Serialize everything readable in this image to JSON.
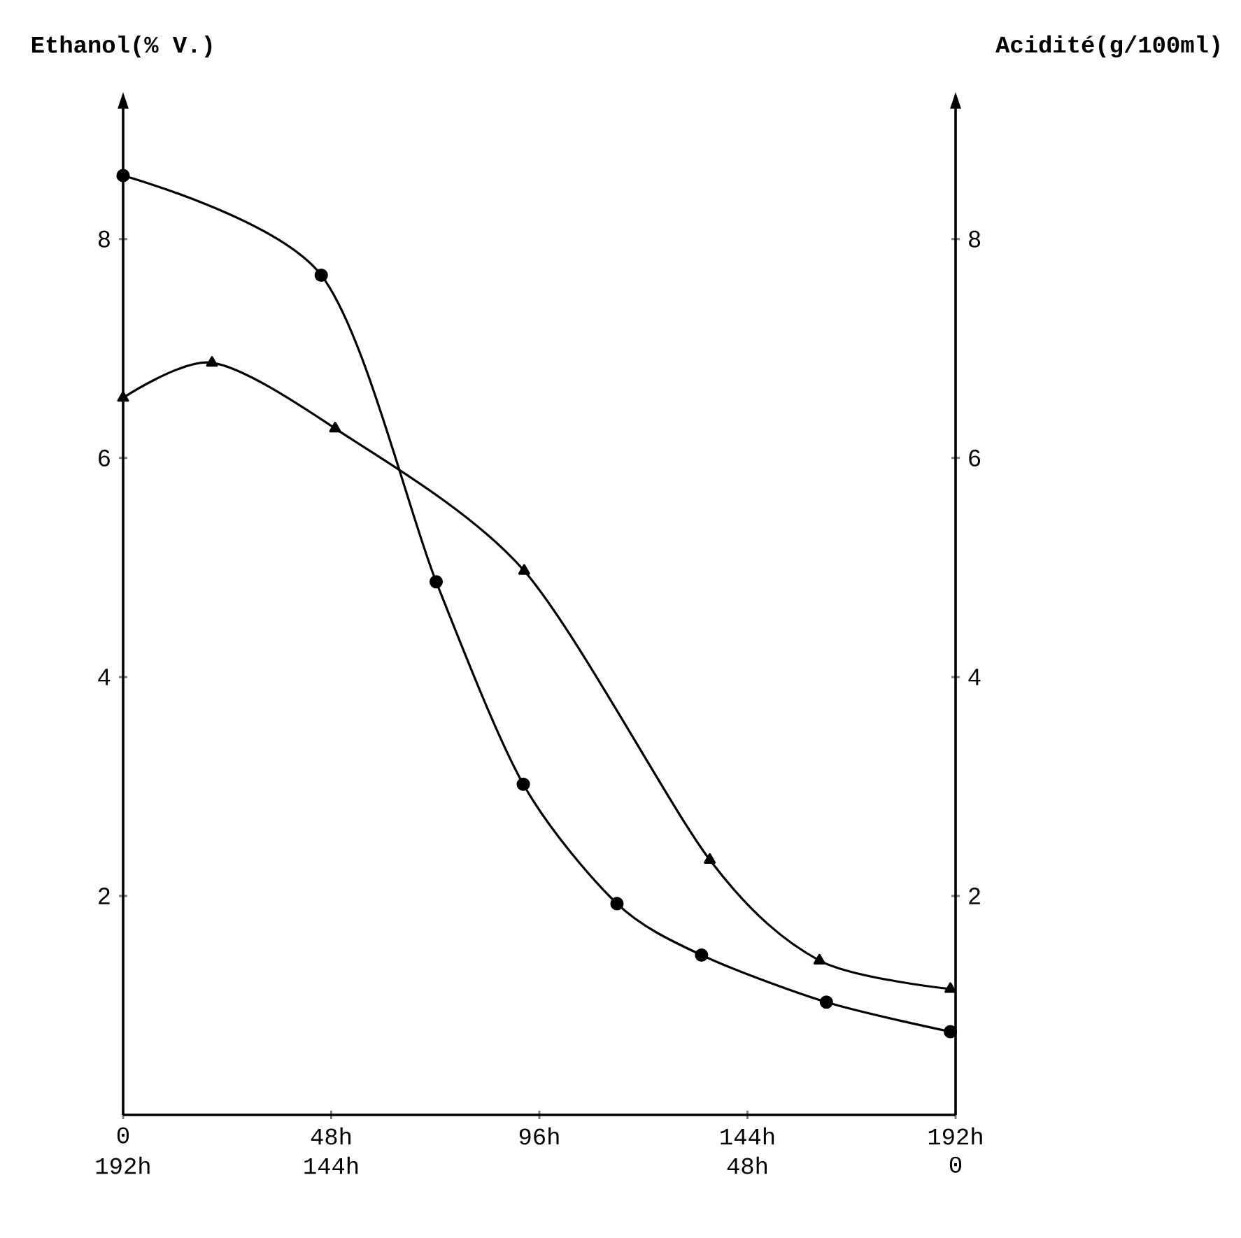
{
  "chart_data": {
    "type": "line",
    "ylabel": "Ethanol(% V.)",
    "y2label": "Acidité(g/100ml)",
    "xlim": [
      0,
      192
    ],
    "xticks": [
      {
        "value": 0,
        "label": "0"
      },
      {
        "value": 48,
        "label": "48h"
      },
      {
        "value": 96,
        "label": "96h"
      },
      {
        "value": 144,
        "label": "144h"
      },
      {
        "value": 192,
        "label": "192h"
      }
    ],
    "x2lim": [
      192,
      0
    ],
    "x2ticks": [
      {
        "value": 192,
        "label": "192h"
      },
      {
        "value": 144,
        "label": "144h"
      },
      {
        "value": 48,
        "label": "48h"
      },
      {
        "value": 0,
        "label": "0"
      }
    ],
    "ylim": [
      0,
      9.2
    ],
    "yticks": [
      2,
      4,
      6,
      8
    ],
    "y2lim": [
      0,
      9.2
    ],
    "y2ticks": [
      2,
      4,
      6,
      8
    ],
    "series": [
      {
        "color": "#000000",
        "marker": "circle",
        "x": [
          0,
          45.7,
          72.2,
          92.3,
          113.9,
          133.4,
          162.2,
          190.8
        ],
        "values": [
          8.58,
          7.67,
          4.87,
          3.02,
          1.93,
          1.46,
          1.03,
          0.76
        ]
      },
      {
        "color": "#000000",
        "marker": "triangle",
        "axis": "y2",
        "x": [
          0,
          20.5,
          48.9,
          92.5,
          135.3,
          160.6,
          190.8
        ],
        "values": [
          6.55,
          6.87,
          6.27,
          4.97,
          2.33,
          1.41,
          1.15
        ]
      }
    ]
  }
}
